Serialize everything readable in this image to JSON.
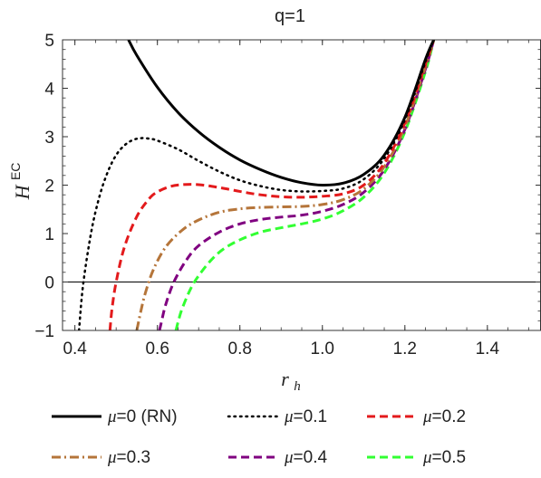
{
  "chart_data": {
    "type": "line",
    "title": "q=1",
    "ylabel": {
      "main": "H",
      "sup": "EC"
    },
    "xlabel": {
      "main": "r",
      "sub": "h"
    },
    "xlim": [
      0.37,
      1.53
    ],
    "ylim": [
      -1,
      5
    ],
    "xticks": [
      "0.4",
      "0.6",
      "0.8",
      "1.0",
      "1.2",
      "1.4"
    ],
    "xtick_values": [
      0.4,
      0.6,
      0.8,
      1.0,
      1.2,
      1.4
    ],
    "yticks": [
      "-1",
      "0",
      "1",
      "2",
      "3",
      "4",
      "5"
    ],
    "ytick_values": [
      -1,
      0,
      1,
      2,
      3,
      4,
      5
    ],
    "zero_line": true,
    "grid": false,
    "legend_position": "bottom",
    "series": [
      {
        "name": "μ=0 (RN)",
        "mu": "μ",
        "rest": "=0 (RN)",
        "color": "#000000",
        "dash": "solid",
        "width": 3,
        "x": [
          0.53,
          0.55,
          0.6,
          0.65,
          0.7,
          0.75,
          0.8,
          0.85,
          0.9,
          0.95,
          1.0,
          1.05,
          1.1,
          1.15,
          1.2,
          1.25,
          1.27
        ],
        "y": [
          5.0,
          4.68,
          4.02,
          3.5,
          3.1,
          2.78,
          2.52,
          2.32,
          2.16,
          2.05,
          2.0,
          2.04,
          2.22,
          2.62,
          3.4,
          4.6,
          5.0
        ]
      },
      {
        "name": "μ=0.1",
        "mu": "μ",
        "rest": "=0.1",
        "color": "#000000",
        "dash": "dotted",
        "width": 2.5,
        "x": [
          0.41,
          0.42,
          0.44,
          0.46,
          0.48,
          0.5,
          0.52,
          0.54,
          0.56,
          0.58,
          0.6,
          0.65,
          0.7,
          0.75,
          0.8,
          0.85,
          0.9,
          0.95,
          1.0,
          1.05,
          1.1,
          1.15,
          1.2,
          1.25,
          1.27
        ],
        "y": [
          -1.0,
          -0.05,
          1.05,
          1.78,
          2.28,
          2.62,
          2.82,
          2.93,
          2.97,
          2.96,
          2.92,
          2.74,
          2.5,
          2.28,
          2.1,
          1.98,
          1.9,
          1.87,
          1.88,
          1.93,
          2.12,
          2.55,
          3.35,
          4.55,
          5.0
        ]
      },
      {
        "name": "μ=0.2",
        "mu": "μ",
        "rest": "=0.2",
        "color": "#e31a1c",
        "dash": "dashed",
        "width": 3,
        "x": [
          0.485,
          0.49,
          0.5,
          0.52,
          0.55,
          0.58,
          0.6,
          0.63,
          0.66,
          0.7,
          0.75,
          0.8,
          0.85,
          0.9,
          0.95,
          1.0,
          1.05,
          1.1,
          1.15,
          1.2,
          1.25,
          1.27
        ],
        "y": [
          -1.0,
          -0.55,
          0.0,
          0.72,
          1.35,
          1.72,
          1.86,
          1.97,
          2.01,
          2.01,
          1.95,
          1.87,
          1.8,
          1.76,
          1.75,
          1.77,
          1.82,
          2.0,
          2.45,
          3.28,
          4.5,
          5.0
        ]
      },
      {
        "name": "μ=0.3",
        "mu": "μ",
        "rest": "=0.3",
        "color": "#b5753a",
        "dash": "dashdot",
        "width": 3,
        "x": [
          0.55,
          0.56,
          0.57,
          0.59,
          0.62,
          0.66,
          0.7,
          0.75,
          0.8,
          0.85,
          0.9,
          0.95,
          1.0,
          1.05,
          1.1,
          1.15,
          1.2,
          1.25,
          1.27
        ],
        "y": [
          -1.0,
          -0.6,
          -0.25,
          0.25,
          0.72,
          1.07,
          1.28,
          1.44,
          1.51,
          1.54,
          1.55,
          1.56,
          1.6,
          1.7,
          1.92,
          2.38,
          3.2,
          4.45,
          5.0
        ]
      },
      {
        "name": "μ=0.4",
        "mu": "μ",
        "rest": "=0.4",
        "color": "#800080",
        "dash": "dashed",
        "width": 3,
        "x": [
          0.605,
          0.61,
          0.62,
          0.64,
          0.67,
          0.7,
          0.75,
          0.8,
          0.85,
          0.9,
          0.95,
          1.0,
          1.05,
          1.1,
          1.15,
          1.2,
          1.25,
          1.27
        ],
        "y": [
          -1.0,
          -0.82,
          -0.47,
          0.0,
          0.45,
          0.75,
          1.03,
          1.2,
          1.29,
          1.34,
          1.38,
          1.46,
          1.6,
          1.85,
          2.32,
          3.15,
          4.4,
          5.0
        ]
      },
      {
        "name": "μ=0.5",
        "mu": "μ",
        "rest": "=0.5",
        "color": "#32ff32",
        "dash": "dashed",
        "width": 3,
        "x": [
          0.645,
          0.65,
          0.66,
          0.68,
          0.7,
          0.73,
          0.76,
          0.8,
          0.85,
          0.9,
          0.95,
          1.0,
          1.05,
          1.1,
          1.15,
          1.2,
          1.25,
          1.27
        ],
        "y": [
          -1.0,
          -0.83,
          -0.55,
          -0.15,
          0.13,
          0.45,
          0.68,
          0.87,
          1.03,
          1.12,
          1.2,
          1.3,
          1.47,
          1.75,
          2.25,
          3.1,
          4.35,
          5.0
        ]
      }
    ]
  }
}
